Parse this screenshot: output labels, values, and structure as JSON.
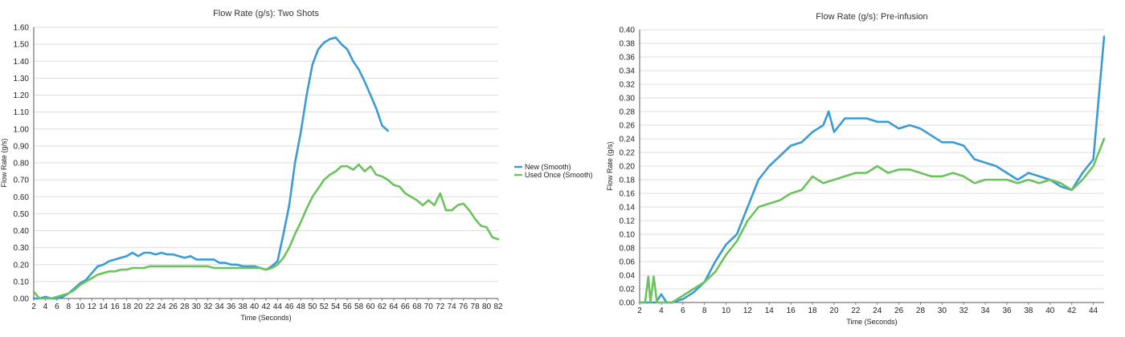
{
  "chart_data": [
    {
      "type": "line",
      "title": "Flow Rate (g/s): Two Shots",
      "xlabel": "Time (Seconds)",
      "ylabel": "Flow Rate (g/s)",
      "xlim": [
        2,
        82
      ],
      "ylim": [
        0,
        1.6
      ],
      "xticks": [
        "2",
        "4",
        "6",
        "8",
        "10",
        "12",
        "14",
        "16",
        "18",
        "20",
        "22",
        "24",
        "26",
        "28",
        "30",
        "32",
        "34",
        "36",
        "38",
        "40",
        "42",
        "44",
        "46",
        "48",
        "50",
        "52",
        "54",
        "56",
        "58",
        "60",
        "62",
        "64",
        "66",
        "68",
        "70",
        "72",
        "74",
        "76",
        "78",
        "80",
        "82"
      ],
      "yticks": [
        "0.00",
        "0.10",
        "0.20",
        "0.30",
        "0.40",
        "0.50",
        "0.60",
        "0.70",
        "0.80",
        "0.90",
        "1.00",
        "1.10",
        "1.20",
        "1.30",
        "1.40",
        "1.50",
        "1.60"
      ],
      "grid": true,
      "legend_position": "right",
      "series": [
        {
          "name": "New (Smooth)",
          "color": "#3a9bd5",
          "x": [
            2,
            3,
            4,
            5,
            6,
            7,
            8,
            9,
            10,
            11,
            12,
            13,
            14,
            15,
            16,
            17,
            18,
            19,
            20,
            21,
            22,
            23,
            24,
            25,
            26,
            27,
            28,
            29,
            30,
            31,
            32,
            33,
            34,
            35,
            36,
            37,
            38,
            39,
            40,
            41,
            42,
            43,
            44,
            45,
            46,
            47,
            48,
            49,
            50,
            51,
            52,
            53,
            54,
            55,
            56,
            57,
            58,
            59,
            60,
            61,
            62,
            63
          ],
          "y": [
            0.0,
            0.0,
            0.01,
            0.0,
            0.0,
            0.01,
            0.03,
            0.06,
            0.09,
            0.11,
            0.15,
            0.19,
            0.2,
            0.22,
            0.23,
            0.24,
            0.25,
            0.27,
            0.25,
            0.27,
            0.27,
            0.26,
            0.27,
            0.26,
            0.26,
            0.25,
            0.24,
            0.25,
            0.23,
            0.23,
            0.23,
            0.23,
            0.21,
            0.21,
            0.2,
            0.2,
            0.19,
            0.19,
            0.19,
            0.18,
            0.17,
            0.19,
            0.22,
            0.38,
            0.55,
            0.8,
            0.98,
            1.2,
            1.38,
            1.47,
            1.51,
            1.53,
            1.54,
            1.5,
            1.47,
            1.4,
            1.35,
            1.28,
            1.2,
            1.12,
            1.02,
            0.99
          ]
        },
        {
          "name": "Used Once (Smooth)",
          "color": "#6cc25c",
          "x": [
            2,
            3,
            4,
            5,
            6,
            7,
            8,
            9,
            10,
            11,
            12,
            13,
            14,
            15,
            16,
            17,
            18,
            19,
            20,
            21,
            22,
            23,
            24,
            25,
            26,
            27,
            28,
            29,
            30,
            31,
            32,
            33,
            34,
            35,
            36,
            37,
            38,
            39,
            40,
            41,
            42,
            43,
            44,
            45,
            46,
            47,
            48,
            49,
            50,
            51,
            52,
            53,
            54,
            55,
            56,
            57,
            58,
            59,
            60,
            61,
            62,
            63,
            64,
            65,
            66,
            67,
            68,
            69,
            70,
            71,
            72,
            73,
            74,
            75,
            76,
            77,
            78,
            79,
            80,
            81,
            82
          ],
          "y": [
            0.04,
            0.0,
            0.0,
            0.0,
            0.01,
            0.02,
            0.03,
            0.05,
            0.08,
            0.1,
            0.12,
            0.14,
            0.15,
            0.16,
            0.16,
            0.17,
            0.17,
            0.18,
            0.18,
            0.18,
            0.19,
            0.19,
            0.19,
            0.19,
            0.19,
            0.19,
            0.19,
            0.19,
            0.19,
            0.19,
            0.19,
            0.18,
            0.18,
            0.18,
            0.18,
            0.18,
            0.18,
            0.18,
            0.18,
            0.18,
            0.17,
            0.18,
            0.2,
            0.24,
            0.3,
            0.38,
            0.45,
            0.53,
            0.6,
            0.65,
            0.7,
            0.73,
            0.75,
            0.78,
            0.78,
            0.76,
            0.79,
            0.75,
            0.78,
            0.73,
            0.72,
            0.7,
            0.67,
            0.66,
            0.62,
            0.6,
            0.58,
            0.55,
            0.58,
            0.55,
            0.62,
            0.52,
            0.52,
            0.55,
            0.56,
            0.52,
            0.47,
            0.43,
            0.42,
            0.36,
            0.35
          ]
        }
      ]
    },
    {
      "type": "line",
      "title": "Flow Rate (g/s): Pre-infusion",
      "xlabel": "Time (Seconds)",
      "ylabel": "Flow Rate (g/s)",
      "xlim": [
        2,
        45
      ],
      "ylim": [
        0,
        0.4
      ],
      "xticks": [
        "2",
        "4",
        "6",
        "8",
        "10",
        "12",
        "14",
        "16",
        "18",
        "20",
        "22",
        "24",
        "26",
        "28",
        "30",
        "32",
        "34",
        "36",
        "38",
        "40",
        "42",
        "44"
      ],
      "xtick_values": [
        2,
        4,
        6,
        8,
        10,
        12,
        14,
        16,
        18,
        20,
        22,
        24,
        26,
        28,
        30,
        32,
        34,
        36,
        38,
        40,
        42,
        44
      ],
      "yticks": [
        "0.00",
        "0.02",
        "0.04",
        "0.06",
        "0.08",
        "0.10",
        "0.12",
        "0.14",
        "0.16",
        "0.18",
        "0.20",
        "0.22",
        "0.24",
        "0.26",
        "0.28",
        "0.30",
        "0.32",
        "0.34",
        "0.36",
        "0.38",
        "0.40"
      ],
      "grid": true,
      "series": [
        {
          "name": "New",
          "color": "#3a9bd5",
          "x": [
            2,
            2.5,
            3,
            3.5,
            4,
            4.5,
            5,
            6,
            7,
            8,
            9,
            10,
            11,
            12,
            13,
            14,
            15,
            16,
            17,
            18,
            19,
            19.5,
            20,
            21,
            22,
            23,
            24,
            25,
            26,
            27,
            28,
            29,
            30,
            31,
            32,
            33,
            34,
            35,
            36,
            37,
            38,
            39,
            40,
            41,
            42,
            43,
            44,
            44.5,
            45
          ],
          "y": [
            0.0,
            0.0,
            0.0,
            0.0,
            0.012,
            0.0,
            0.0,
            0.005,
            0.015,
            0.03,
            0.06,
            0.085,
            0.1,
            0.14,
            0.18,
            0.2,
            0.215,
            0.23,
            0.235,
            0.25,
            0.26,
            0.28,
            0.25,
            0.27,
            0.27,
            0.27,
            0.265,
            0.265,
            0.255,
            0.26,
            0.255,
            0.245,
            0.235,
            0.235,
            0.23,
            0.21,
            0.205,
            0.2,
            0.19,
            0.18,
            0.19,
            0.185,
            0.18,
            0.17,
            0.165,
            0.19,
            0.21,
            0.3,
            0.39
          ]
        },
        {
          "name": "Used Once",
          "color": "#6cc25c",
          "x": [
            2,
            2.5,
            2.8,
            3,
            3.3,
            3.6,
            4,
            5,
            6,
            7,
            8,
            9,
            10,
            11,
            12,
            13,
            14,
            15,
            16,
            17,
            18,
            19,
            20,
            21,
            22,
            23,
            24,
            25,
            26,
            27,
            28,
            29,
            30,
            31,
            32,
            33,
            34,
            35,
            36,
            37,
            38,
            39,
            40,
            41,
            42,
            43,
            44,
            45
          ],
          "y": [
            0.0,
            0.0,
            0.038,
            0.0,
            0.038,
            0.0,
            0.0,
            0.0,
            0.01,
            0.02,
            0.03,
            0.045,
            0.07,
            0.09,
            0.12,
            0.14,
            0.145,
            0.15,
            0.16,
            0.165,
            0.185,
            0.175,
            0.18,
            0.185,
            0.19,
            0.19,
            0.2,
            0.19,
            0.195,
            0.195,
            0.19,
            0.185,
            0.185,
            0.19,
            0.185,
            0.175,
            0.18,
            0.18,
            0.18,
            0.175,
            0.18,
            0.175,
            0.18,
            0.175,
            0.165,
            0.18,
            0.2,
            0.24
          ]
        }
      ]
    }
  ],
  "legend": {
    "items": [
      {
        "label": "New (Smooth)",
        "color": "#3a9bd5"
      },
      {
        "label": "Used Once (Smooth)",
        "color": "#6cc25c"
      }
    ]
  }
}
